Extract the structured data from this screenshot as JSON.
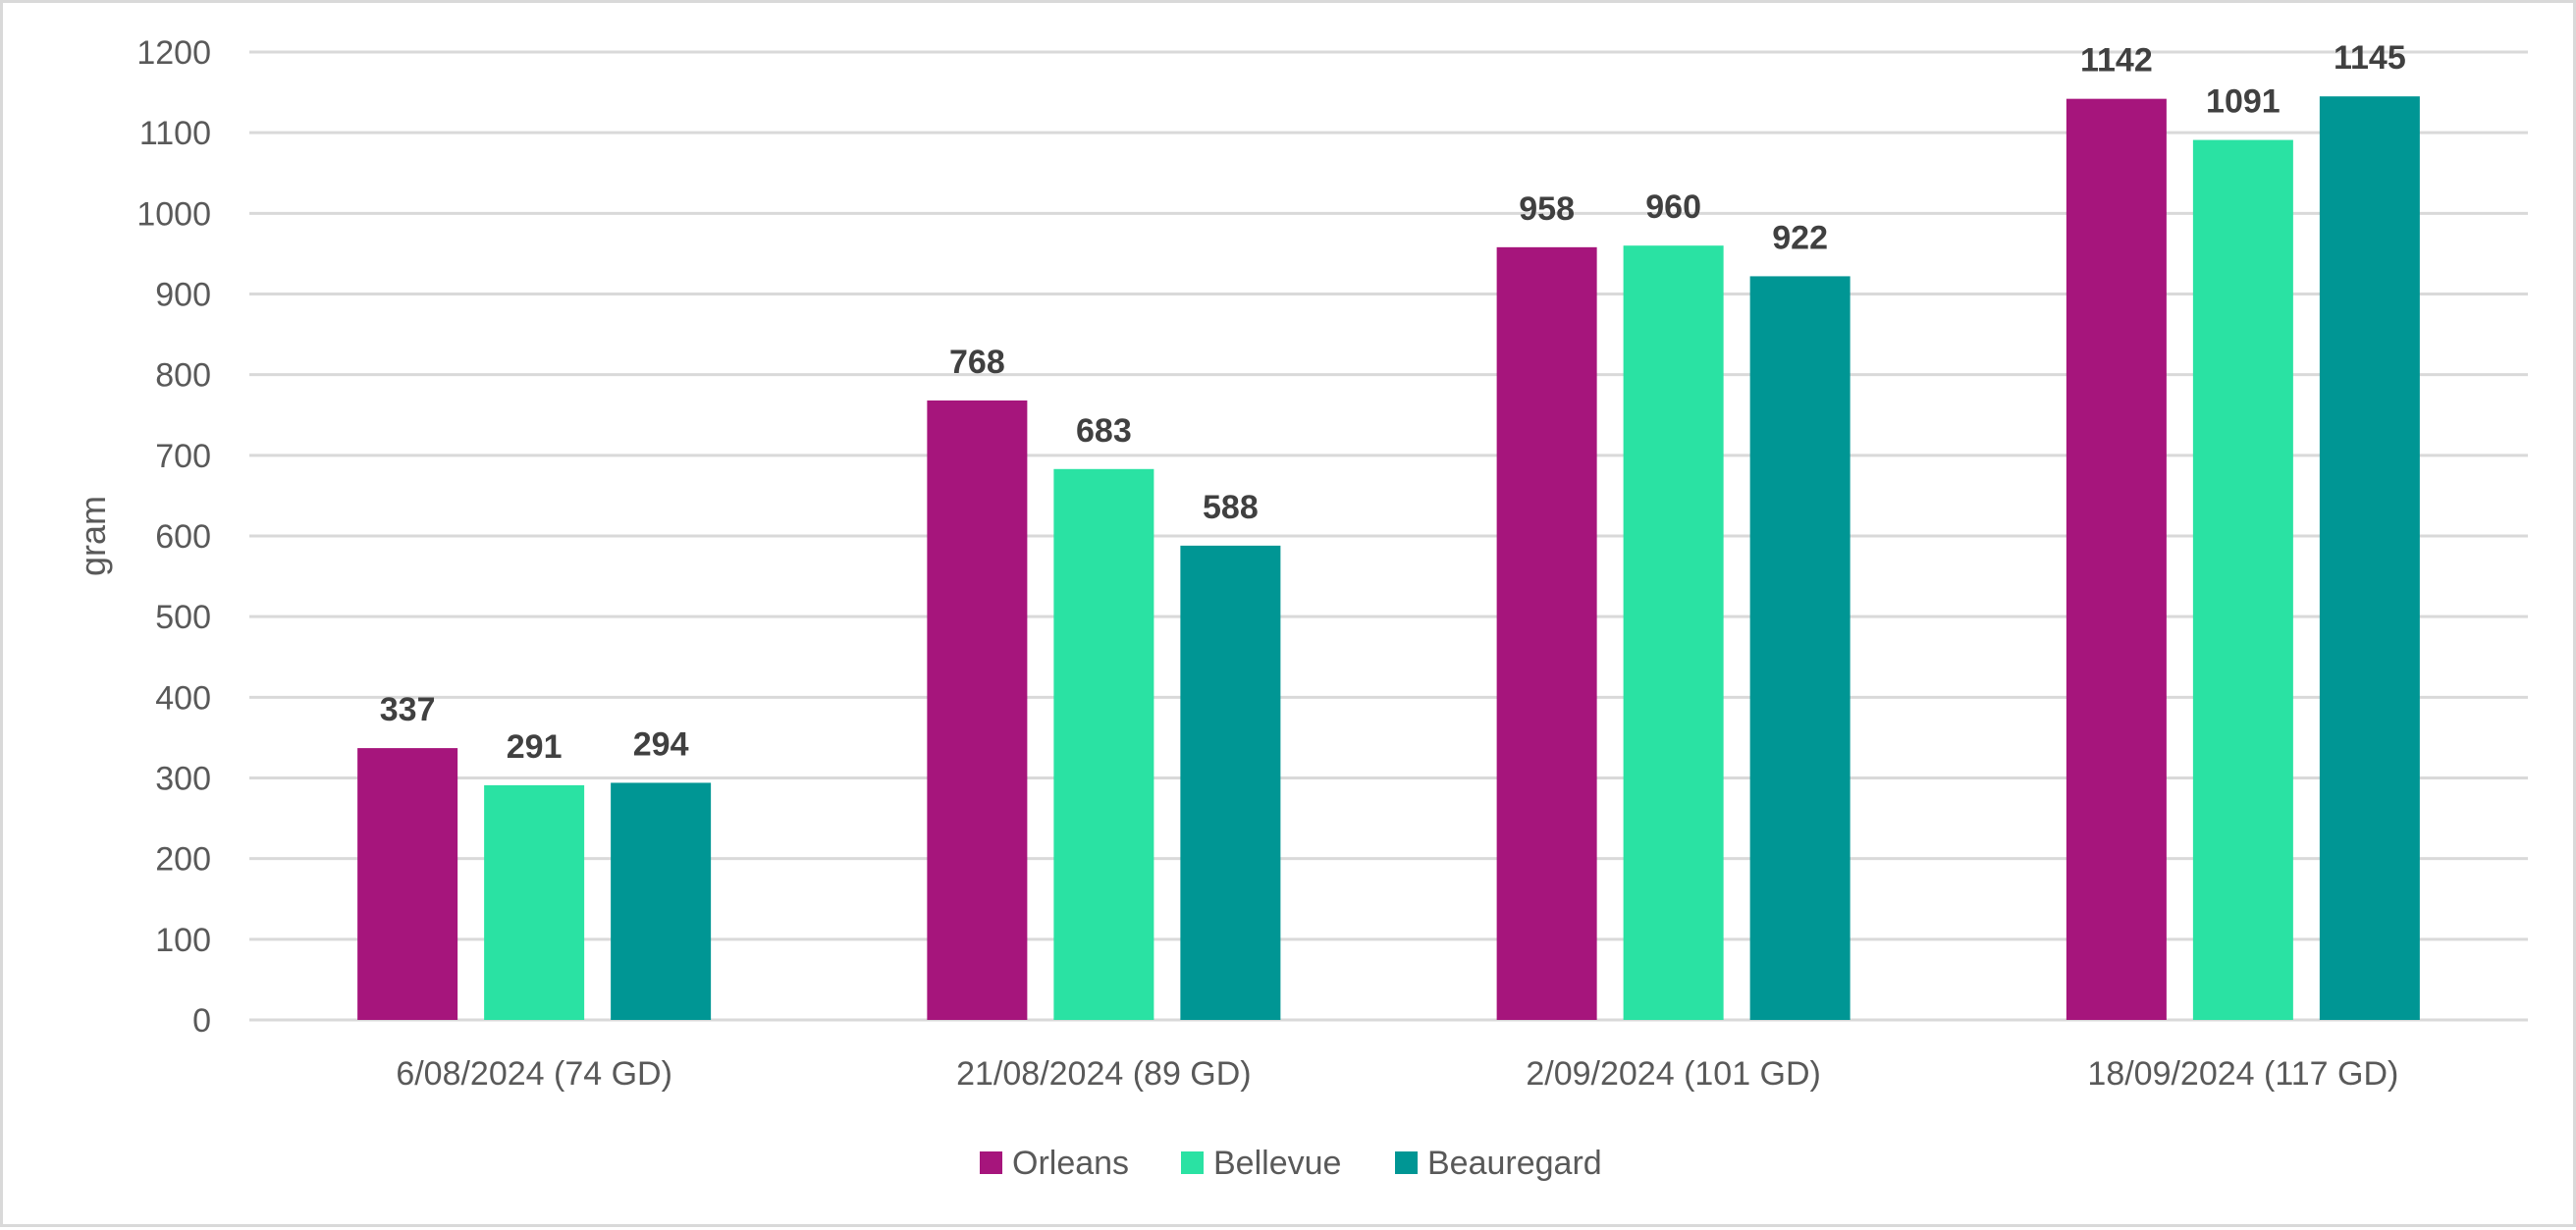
{
  "chart_data": {
    "type": "bar",
    "title": "",
    "xlabel": "",
    "ylabel": "gram",
    "ylim": [
      0,
      1200
    ],
    "yticks": [
      0,
      100,
      200,
      300,
      400,
      500,
      600,
      700,
      800,
      900,
      1000,
      1100,
      1200
    ],
    "grid": true,
    "legend_position": "bottom",
    "categories": [
      "6/08/2024 (74 GD)",
      "21/08/2024 (89 GD)",
      "2/09/2024 (101 GD)",
      "18/09/2024 (117 GD)"
    ],
    "series": [
      {
        "name": "Orleans",
        "color": "#a6157c",
        "values": [
          337,
          768,
          958,
          1142
        ]
      },
      {
        "name": "Bellevue",
        "color": "#2ae2a3",
        "values": [
          291,
          683,
          960,
          1091
        ]
      },
      {
        "name": "Beauregard",
        "color": "#009694",
        "values": [
          294,
          588,
          922,
          1145
        ]
      }
    ],
    "data_labels": true
  }
}
